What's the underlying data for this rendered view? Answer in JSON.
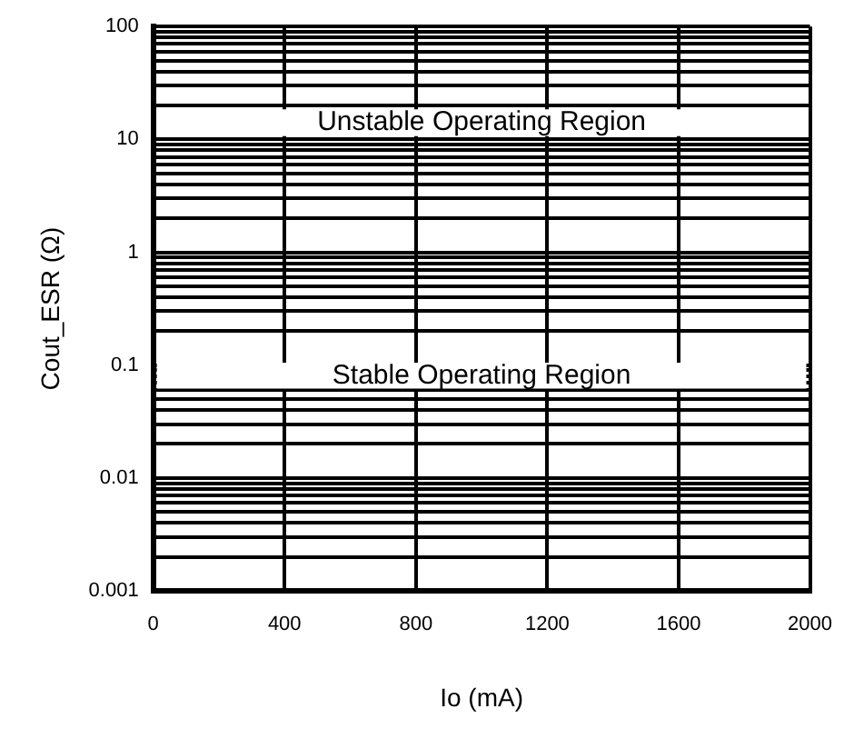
{
  "chart_data": {
    "type": "line",
    "xlabel": "Io (mA)",
    "ylabel": "Cout_ESR (Ω)",
    "log": "y",
    "grid": true,
    "legend": false,
    "xlim": [
      0,
      2000
    ],
    "xticks": [
      0,
      400,
      800,
      1200,
      1600,
      2000
    ],
    "ylim": [
      0.001,
      100
    ],
    "yticks": [
      0.001,
      {
        "value": 0.002,
        "label": null
      },
      {
        "value": 0.003,
        "label": null
      },
      {
        "value": 0.004,
        "label": null
      },
      {
        "value": 0.005,
        "label": null
      },
      {
        "value": 0.006,
        "label": null
      },
      {
        "value": 0.007,
        "label": null
      },
      {
        "value": 0.008,
        "label": null
      },
      {
        "value": 0.009,
        "label": null
      },
      0.01,
      {
        "value": 0.02,
        "label": null
      },
      {
        "value": 0.03,
        "label": null
      },
      {
        "value": 0.04,
        "label": null
      },
      {
        "value": 0.05,
        "label": null
      },
      {
        "value": 0.06,
        "label": null
      },
      {
        "value": 0.07,
        "label": null
      },
      {
        "value": 0.08,
        "label": null
      },
      {
        "value": 0.09,
        "label": null
      },
      0.1,
      {
        "value": 0.2,
        "label": null
      },
      {
        "value": 0.3,
        "label": null
      },
      {
        "value": 0.4,
        "label": null
      },
      {
        "value": 0.5,
        "label": null
      },
      {
        "value": 0.6,
        "label": null
      },
      {
        "value": 0.7,
        "label": null
      },
      {
        "value": 0.8,
        "label": null
      },
      {
        "value": 0.9,
        "label": null
      },
      1,
      {
        "value": 2,
        "label": null
      },
      {
        "value": 3,
        "label": null
      },
      {
        "value": 4,
        "label": null
      },
      {
        "value": 5,
        "label": null
      },
      {
        "value": 6,
        "label": null
      },
      {
        "value": 7,
        "label": null
      },
      {
        "value": 8,
        "label": null
      },
      {
        "value": 9,
        "label": null
      },
      10,
      {
        "value": 20,
        "label": null
      },
      {
        "value": 30,
        "label": null
      },
      {
        "value": 40,
        "label": null
      },
      {
        "value": 50,
        "label": null
      },
      {
        "value": 60,
        "label": null
      },
      {
        "value": 70,
        "label": null
      },
      {
        "value": 80,
        "label": null
      },
      {
        "value": 90,
        "label": null
      },
      100
    ],
    "bands": [
      {
        "axis": "y",
        "from": 10.7,
        "to": 18.5,
        "label": "Unstable Operating Region",
        "color": "#ffffff"
      },
      {
        "axis": "y",
        "from": 0.062,
        "to": 0.105,
        "label": "Stable Operating Region",
        "color": "#ffffff"
      }
    ]
  }
}
